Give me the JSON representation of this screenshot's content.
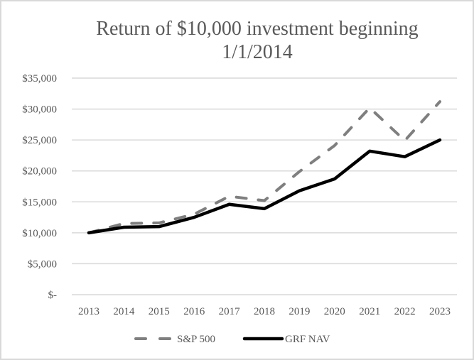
{
  "chart_data": {
    "type": "line",
    "title": "Return of $10,000 investment beginning 1/1/2014",
    "title_lines": [
      "Return of $10,000 investment beginning",
      "1/1/2014"
    ],
    "xlabel": "",
    "ylabel": "",
    "categories": [
      "2013",
      "2014",
      "2015",
      "2016",
      "2017",
      "2018",
      "2019",
      "2020",
      "2021",
      "2022",
      "2023"
    ],
    "ylim": [
      0,
      35000
    ],
    "yticks": [
      0,
      5000,
      10000,
      15000,
      20000,
      25000,
      30000,
      35000
    ],
    "ytick_labels": [
      "$-",
      "$5,000",
      "$10,000",
      "$15,000",
      "$20,000",
      "$25,000",
      "$30,000",
      "$35,000"
    ],
    "grid": true,
    "legend_position": "bottom",
    "series": [
      {
        "name": "S&P 500",
        "style": "dashed",
        "color": "#7f7f7f",
        "values": [
          10000,
          11500,
          11600,
          13000,
          15900,
          15200,
          19900,
          24100,
          30200,
          24900,
          31200
        ]
      },
      {
        "name": "GRF NAV",
        "style": "solid",
        "color": "#000000",
        "values": [
          10000,
          10900,
          11000,
          12500,
          14600,
          13900,
          16800,
          18700,
          23200,
          22300,
          25000
        ]
      }
    ]
  }
}
